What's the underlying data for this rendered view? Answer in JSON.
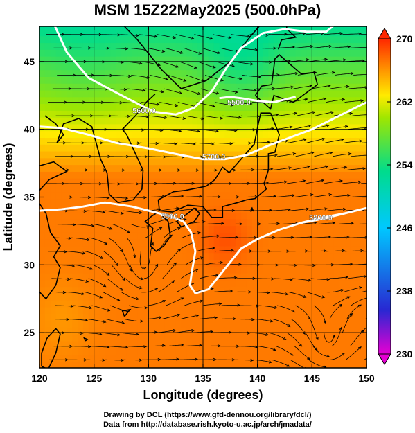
{
  "title": "MSM 15Z22May2025 (500.0hPa)",
  "credits": {
    "line1": "Drawing by DCL (https://www.gfd-dennou.org/library/dcl/)",
    "line2": "Data from http://database.rish.kyoto-u.ac.jp/arch/jmadata/"
  },
  "chart_data": {
    "type": "heatmap",
    "title": "MSM 15Z22May2025 (500.0hPa)",
    "xlabel": "Longitude (degrees)",
    "ylabel": "Latitude  (degrees)",
    "xlim": [
      120,
      150
    ],
    "ylim": [
      22.4,
      47.6
    ],
    "xticks": [
      120,
      125,
      130,
      135,
      140,
      145,
      150
    ],
    "yticks": [
      25,
      30,
      35,
      40,
      45
    ],
    "grid": true,
    "colorbar": {
      "min": 230,
      "max": 270,
      "ticks": [
        230,
        238,
        246,
        254,
        262,
        270
      ],
      "extend": "both",
      "colors": [
        "#e600d2",
        "#2828d2",
        "#00c8ff",
        "#00dc8c",
        "#a0e600",
        "#ffeb00",
        "#ff9600",
        "#ff2800"
      ]
    },
    "contours": [
      {
        "label": "5600.0",
        "label_lon": 129.6,
        "label_lat": 41.4,
        "lon": [
          121.2,
          122.5,
          124.5,
          126.6,
          128.5,
          130.5,
          132.5,
          134.2,
          135.8,
          137.2,
          138.5,
          140.5,
          142.5,
          144.5,
          146.3,
          147.5
        ],
        "lat": [
          48.0,
          45.7,
          43.8,
          42.9,
          42.1,
          41.3,
          41.1,
          41.6,
          42.8,
          44.6,
          46.0,
          47.1,
          47.4,
          47.2,
          47.2,
          48.0
        ]
      },
      {
        "label": "5500.0",
        "label_lon": 138.3,
        "label_lat": 42.0,
        "lon": [
          136.5,
          137.5,
          138.5,
          140.0,
          141.5,
          142.5,
          143.5
        ],
        "lat": [
          42.3,
          42.4,
          42.3,
          42.1,
          42.0,
          42.2,
          42.4
        ]
      },
      {
        "label": "5700.0",
        "label_lon": 136.0,
        "label_lat": 38.0,
        "lon": [
          120.0,
          122.0,
          124.5,
          127.0,
          130.0,
          133.0,
          135.0,
          137.0,
          139.0,
          141.0,
          143.0,
          145.0,
          147.5,
          150.0
        ],
        "lat": [
          40.2,
          40.1,
          39.6,
          39.0,
          38.6,
          38.1,
          37.8,
          37.8,
          38.1,
          38.8,
          39.4,
          40.0,
          41.0,
          42.0
        ]
      },
      {
        "label": "5800.0",
        "label_lon": 132.2,
        "label_lat": 33.6,
        "lon": [
          120.0,
          122.0,
          124.0,
          126.0,
          128.5,
          130.5,
          132.0,
          133.2,
          133.9,
          134.3,
          134.0,
          133.8,
          134.3,
          135.5,
          136.5,
          137.5,
          138.5,
          140.0,
          142.0,
          144.0,
          146.0,
          148.0,
          150.0
        ],
        "lat": [
          34.0,
          34.1,
          34.3,
          34.6,
          34.3,
          33.9,
          33.6,
          33.2,
          32.4,
          31.0,
          29.6,
          28.5,
          27.9,
          28.2,
          29.2,
          30.2,
          31.2,
          31.9,
          32.6,
          33.1,
          33.4,
          33.8,
          34.2
        ]
      },
      {
        "label": "5800.0",
        "label_lon": 145.8,
        "label_lat": 33.5,
        "lon": [
          144.0,
          146.0,
          148.0
        ],
        "lat": [
          33.1,
          33.5,
          33.8
        ]
      }
    ],
    "vortices": [
      {
        "lon": 129.5,
        "lat": 29.3,
        "rotation": "counterclockwise"
      },
      {
        "lon": 146.5,
        "lat": 24.0,
        "rotation": "counterclockwise"
      }
    ],
    "temperature_field_note": "Filled colors show temperature (colorbar 230-270); warmest (~268) near 137E 32N, coolest (~250) near 138E 46N."
  }
}
